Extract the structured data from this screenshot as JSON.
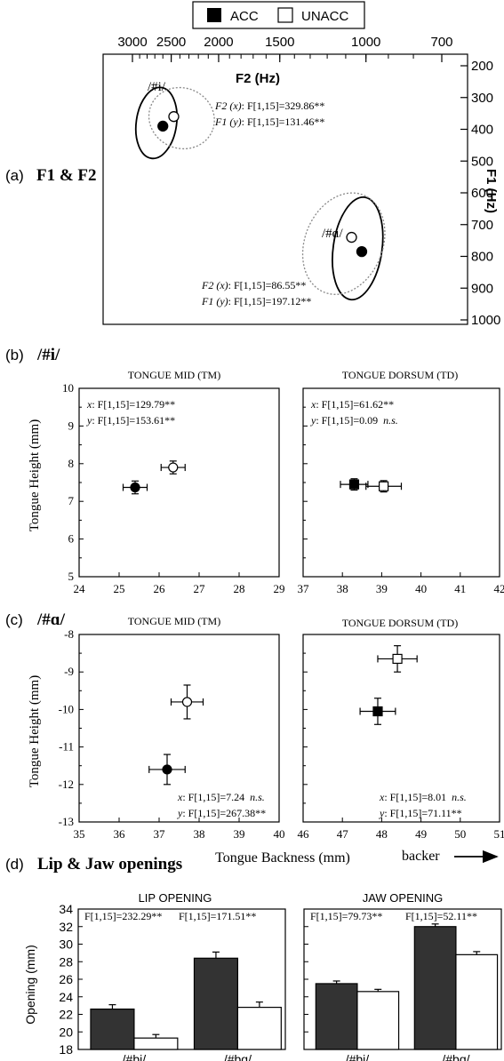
{
  "legend": {
    "items": [
      {
        "label": "ACC",
        "fill": "#000000"
      },
      {
        "label": "UNACC",
        "fill": "#ffffff"
      }
    ]
  },
  "sections": {
    "a": {
      "letter": "(a)",
      "title": "F1 & F2"
    },
    "b": {
      "letter": "(b)",
      "title": "/#i/"
    },
    "c": {
      "letter": "(c)",
      "title": "/#ɑ/"
    },
    "d": {
      "letter": "(d)",
      "title": "Lip & Jaw openings"
    }
  },
  "chart_data": [
    {
      "id": "formant",
      "type": "scatter",
      "x_axis": {
        "label": "F2 (Hz)",
        "ticks": [
          3000,
          2500,
          2000,
          1500,
          1000,
          700
        ],
        "reversed": true,
        "scale": "log"
      },
      "y_axis": {
        "label": "F1 (Hz)",
        "ticks": [
          200,
          300,
          400,
          500,
          600,
          700,
          800,
          900,
          1000
        ],
        "reversed": true,
        "range": [
          200,
          1000
        ]
      },
      "series": [
        {
          "name": "ACC",
          "points": [
            {
              "vowel": "/#i/",
              "x": 2600,
              "y": 390
            },
            {
              "vowel": "/#ɑ/",
              "x": 1020,
              "y": 785
            }
          ]
        },
        {
          "name": "UNACC",
          "points": [
            {
              "vowel": "/#i/",
              "x": 2470,
              "y": 360
            },
            {
              "vowel": "/#ɑ/",
              "x": 1070,
              "y": 740
            }
          ]
        }
      ],
      "ellipses": [
        {
          "vowel": "/#i/",
          "series": "ACC",
          "x": 2680,
          "y": 380,
          "x_span": [
            2950,
            2440
          ],
          "y_span": [
            265,
            490
          ]
        },
        {
          "vowel": "/#i/",
          "series": "UNACC",
          "x": 2380,
          "y": 365,
          "x_span": [
            2800,
            2050
          ],
          "y_span": [
            265,
            455
          ]
        },
        {
          "vowel": "/#ɑ/",
          "series": "ACC",
          "x": 1040,
          "y": 775,
          "x_span": [
            1170,
            930
          ],
          "y_span": [
            610,
            935
          ]
        },
        {
          "vowel": "/#ɑ/",
          "series": "UNACC",
          "x": 1110,
          "y": 760,
          "x_span": [
            1370,
            950
          ],
          "y_span": [
            590,
            920
          ]
        }
      ],
      "annotations": [
        {
          "vowel": "/#i/",
          "lines": [
            {
              "prefix": "F2 (x)",
              "stat": ": F[1,15]=329.86**"
            },
            {
              "prefix": "F1 (y)",
              "stat": ": F[1,15]=131.46**"
            }
          ]
        },
        {
          "vowel": "/#ɑ/",
          "lines": [
            {
              "prefix": "F2 (x)",
              "stat": ": F[1,15]=86.55**"
            },
            {
              "prefix": "F1 (y)",
              "stat": ": F[1,15]=197.12**"
            }
          ]
        }
      ],
      "vowel_labels": [
        "/#i/",
        "/#ɑ/"
      ]
    },
    {
      "id": "i_tm",
      "type": "scatter",
      "title": "TONGUE MID (TM)",
      "ylabel": "Tongue Height (mm)",
      "xlim": [
        24,
        29
      ],
      "ylim": [
        5,
        10
      ],
      "xticks": [
        24,
        25,
        26,
        27,
        28,
        29
      ],
      "yticks": [
        5,
        6,
        7,
        8,
        9,
        10
      ],
      "marker": "circle",
      "series": [
        {
          "name": "ACC",
          "x": 25.4,
          "y": 7.37,
          "xerr": 0.3,
          "yerr": 0.17
        },
        {
          "name": "UNACC",
          "x": 26.35,
          "y": 7.9,
          "xerr": 0.3,
          "yerr": 0.17
        }
      ],
      "stats": [
        {
          "var": "x",
          "text": ": F[1,15]=129.79**",
          "ns": ""
        },
        {
          "var": "y",
          "text": ": F[1,15]=153.61**",
          "ns": ""
        }
      ]
    },
    {
      "id": "i_td",
      "type": "scatter",
      "title": "TONGUE DORSUM (TD)",
      "xlim": [
        37,
        42
      ],
      "ylim": [
        5,
        10
      ],
      "xticks": [
        37,
        38,
        39,
        40,
        41,
        42
      ],
      "yticks": [
        5,
        6,
        7,
        8,
        9,
        10
      ],
      "marker": "square",
      "series": [
        {
          "name": "ACC",
          "x": 38.3,
          "y": 7.45,
          "xerr": 0.35,
          "yerr": 0.15
        },
        {
          "name": "UNACC",
          "x": 39.05,
          "y": 7.4,
          "xerr": 0.45,
          "yerr": 0.15
        }
      ],
      "stats": [
        {
          "var": "x",
          "text": ": F[1,15]=61.62**",
          "ns": ""
        },
        {
          "var": "y",
          "text": ": F[1,15]=0.09",
          "ns": "n.s."
        }
      ]
    },
    {
      "id": "a_tm",
      "type": "scatter",
      "title": "TONGUE MID (TM)",
      "ylabel": "Tongue Height (mm)",
      "xlim": [
        35,
        40
      ],
      "ylim": [
        -13,
        -8
      ],
      "xticks": [
        35,
        36,
        37,
        38,
        39,
        40
      ],
      "yticks": [
        -13,
        -12,
        -11,
        -10,
        -9,
        -8
      ],
      "marker": "circle",
      "series": [
        {
          "name": "ACC",
          "x": 37.2,
          "y": -11.6,
          "xerr": 0.45,
          "yerr": 0.4
        },
        {
          "name": "UNACC",
          "x": 37.7,
          "y": -9.8,
          "xerr": 0.4,
          "yerr": 0.45
        }
      ],
      "stats": [
        {
          "var": "x",
          "text": ": F[1,15]=7.24",
          "ns": "n.s."
        },
        {
          "var": "y",
          "text": ": F[1,15]=267.38**",
          "ns": ""
        }
      ]
    },
    {
      "id": "a_td",
      "type": "scatter",
      "title": "TONGUE DORSUM (TD)",
      "xlim": [
        46,
        51
      ],
      "ylim": [
        -13,
        -8
      ],
      "xticks": [
        46,
        47,
        48,
        49,
        50,
        51
      ],
      "yticks": [
        -13,
        -12,
        -11,
        -10,
        -9,
        -8
      ],
      "marker": "square",
      "series": [
        {
          "name": "ACC",
          "x": 47.9,
          "y": -10.05,
          "xerr": 0.45,
          "yerr": 0.35
        },
        {
          "name": "UNACC",
          "x": 48.4,
          "y": -8.65,
          "xerr": 0.5,
          "yerr": 0.35
        }
      ],
      "stats": [
        {
          "var": "x",
          "text": ": F[1,15]=8.01",
          "ns": "n.s."
        },
        {
          "var": "y",
          "text": ": F[1,15]=71.11**",
          "ns": ""
        }
      ]
    },
    {
      "id": "lip",
      "type": "bar",
      "title": "LIP OPENING",
      "ylabel": "Opening (mm)",
      "ylim": [
        18,
        34
      ],
      "yticks": [
        18,
        20,
        22,
        24,
        26,
        28,
        30,
        32,
        34
      ],
      "categories": [
        "/#bi/",
        "/#bɑ/"
      ],
      "series": [
        {
          "name": "ACC",
          "values": [
            22.6,
            28.4
          ],
          "errors": [
            0.5,
            0.7
          ]
        },
        {
          "name": "UNACC",
          "values": [
            19.3,
            22.8
          ],
          "errors": [
            0.4,
            0.6
          ]
        }
      ],
      "stats": [
        "F[1,15]=232.29**",
        "F[1,15]=171.51**"
      ]
    },
    {
      "id": "jaw",
      "type": "bar",
      "title": "JAW OPENING",
      "ylim": [
        18,
        34
      ],
      "yticks": [
        18,
        20,
        22,
        24,
        26,
        28,
        30,
        32,
        34
      ],
      "categories": [
        "/#bi/",
        "/#bɑ/"
      ],
      "series": [
        {
          "name": "ACC",
          "values": [
            25.5,
            32.0
          ],
          "errors": [
            0.3,
            0.3
          ]
        },
        {
          "name": "UNACC",
          "values": [
            24.6,
            28.8
          ],
          "errors": [
            0.25,
            0.35
          ]
        }
      ],
      "stats": [
        "F[1,15]=79.73**",
        "F[1,15]=52.11**"
      ]
    }
  ],
  "shared_axis": {
    "xlabel": "Tongue Backness (mm)",
    "direction_label": "backer"
  }
}
